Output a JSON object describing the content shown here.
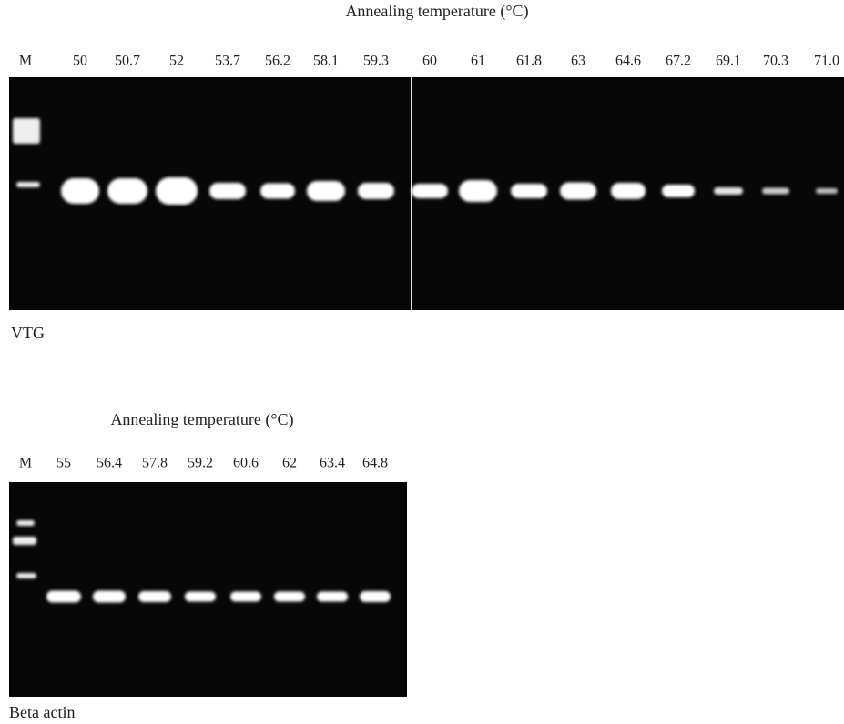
{
  "panels": [
    {
      "title": "Annealing temperature (°C)",
      "lanes": [
        "M",
        "50",
        "50.7",
        "52",
        "53.7",
        "56.2",
        "58.1",
        "59.3",
        "60",
        "61",
        "61.8",
        "63",
        "64.6",
        "67.2",
        "69.1",
        "70.3",
        "71.0"
      ],
      "caption": "VTG"
    },
    {
      "title": "Annealing temperature (°C)",
      "lanes": [
        "M",
        "55",
        "56.4",
        "57.8",
        "59.2",
        "60.6",
        "62",
        "63.4",
        "64.8"
      ],
      "caption": "Beta actin"
    }
  ]
}
